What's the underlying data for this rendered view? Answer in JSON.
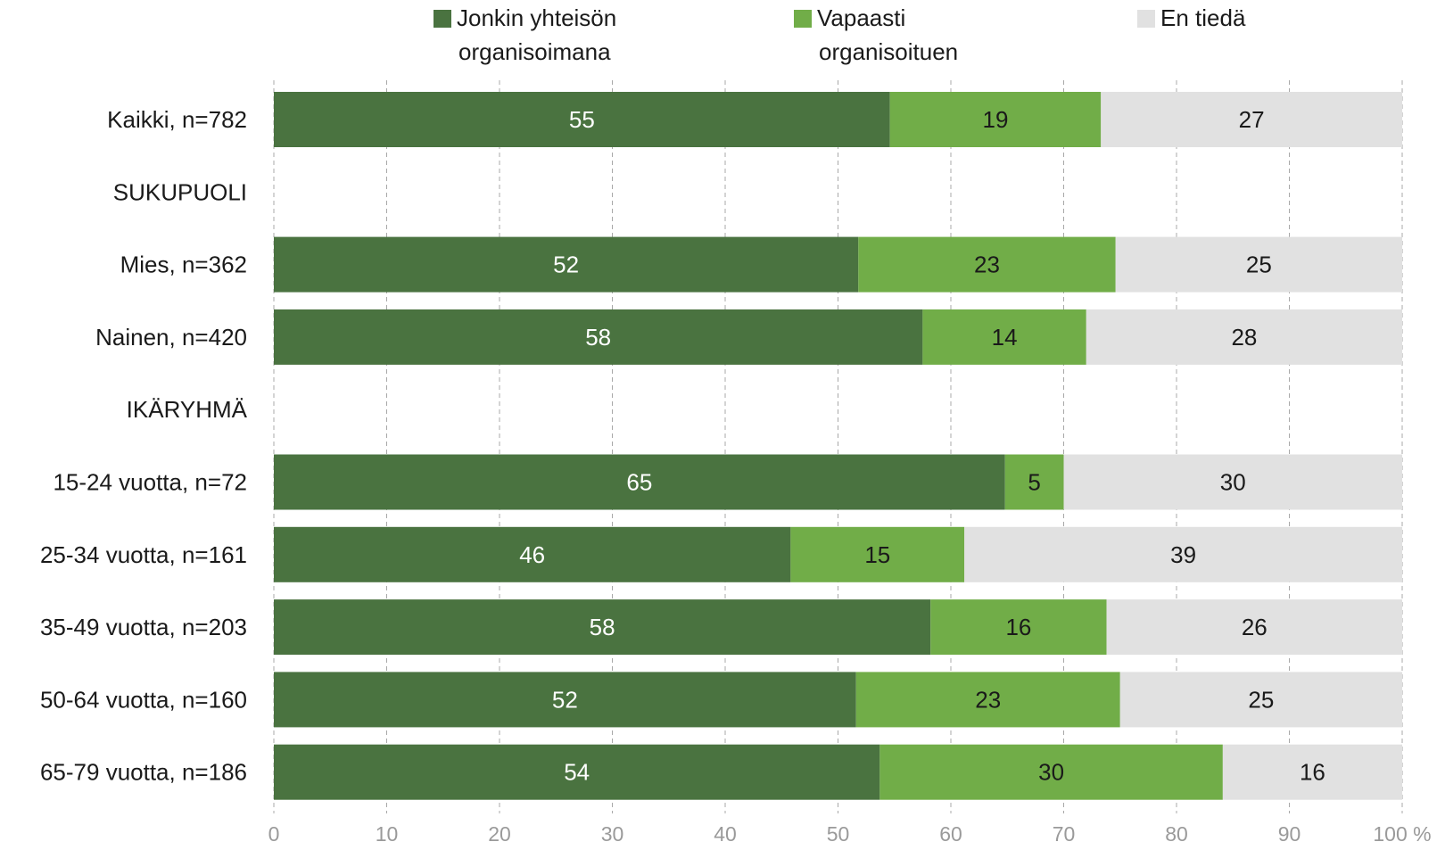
{
  "chart_data": {
    "type": "bar",
    "orientation": "horizontal",
    "stacked": true,
    "xlim": [
      0,
      100
    ],
    "x_ticks": [
      "0",
      "10",
      "20",
      "30",
      "40",
      "50",
      "60",
      "70",
      "80",
      "90",
      "100 %"
    ],
    "grid": true,
    "legend_position": "top",
    "categories": [
      "Kaikki, n=782",
      "SUKUPUOLI",
      "Mies, n=362",
      "Nainen, n=420",
      "IKÄRYHMÄ",
      "15-24 vuotta, n=72",
      "25-34 vuotta, n=161",
      "35-49 vuotta, n=203",
      "50-64 vuotta, n=160",
      "65-79 vuotta, n=186"
    ],
    "series": [
      {
        "name": "Jonkin yhteisön organisoimana",
        "legend_lines": [
          "Jonkin yhteisön",
          "organisoimana"
        ],
        "color": "#4a7340",
        "label_color": "#ffffff",
        "values": [
          54.6,
          null,
          51.8,
          57.5,
          null,
          64.8,
          45.8,
          58.2,
          51.6,
          53.7
        ],
        "labels": [
          "55",
          "",
          "52",
          "58",
          "",
          "65",
          "46",
          "58",
          "52",
          "54"
        ]
      },
      {
        "name": "Vapaasti organisoituen",
        "legend_lines": [
          "Vapaasti",
          "organisoituen"
        ],
        "color": "#71ad48",
        "label_color": "#1a1a1a",
        "values": [
          18.7,
          null,
          22.8,
          14.5,
          null,
          5.2,
          15.4,
          15.6,
          23.4,
          30.4
        ],
        "labels": [
          "19",
          "",
          "23",
          "14",
          "",
          "5",
          "15",
          "16",
          "23",
          "30"
        ]
      },
      {
        "name": "En tiedä",
        "legend_lines": [
          "En tiedä"
        ],
        "color": "#e1e1e1",
        "label_color": "#1a1a1a",
        "values": [
          26.7,
          null,
          25.4,
          28.0,
          null,
          30.0,
          38.8,
          26.2,
          25.0,
          15.9
        ],
        "labels": [
          "27",
          "",
          "25",
          "28",
          "",
          "30",
          "39",
          "26",
          "25",
          "16"
        ]
      }
    ]
  }
}
